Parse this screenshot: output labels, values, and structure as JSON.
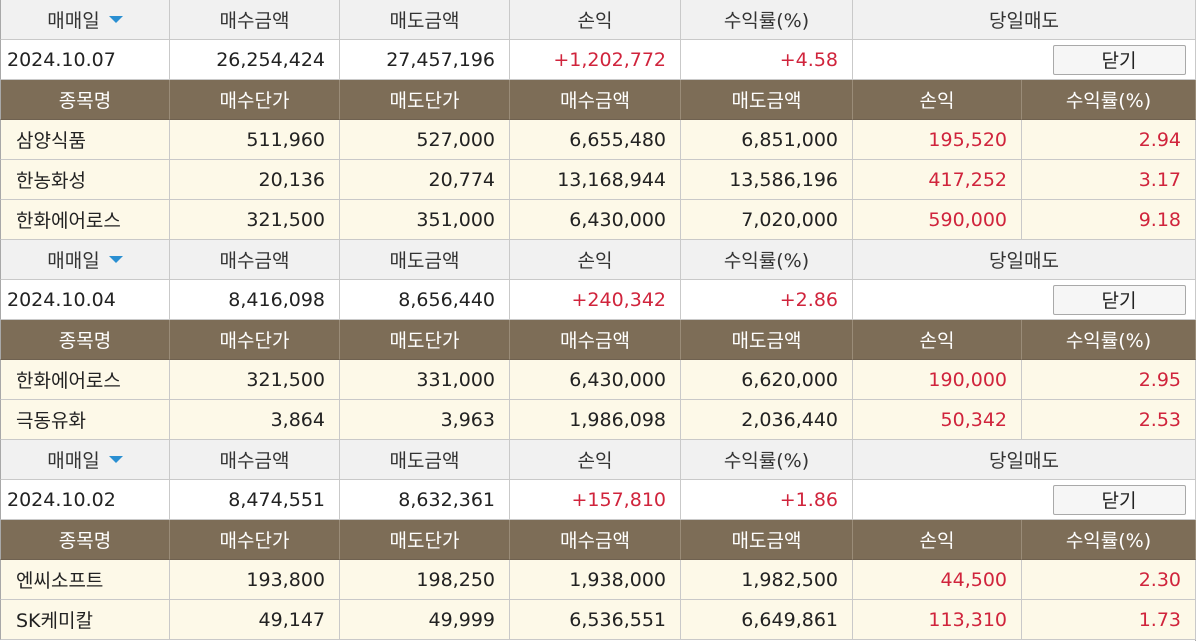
{
  "summary_headers": {
    "trade_date": "매매일",
    "buy_amount": "매수금액",
    "sell_amount": "매도금액",
    "profit": "손익",
    "return_rate": "수익률(%)",
    "same_day_sell": "당일매도"
  },
  "item_headers": {
    "name": "종목명",
    "buy_price": "매수단가",
    "sell_price": "매도단가",
    "buy_amount": "매수금액",
    "sell_amount": "매도금액",
    "profit": "손익",
    "return_rate": "수익률(%)"
  },
  "close_label": "닫기",
  "groups": [
    {
      "date": "2024.10.07",
      "buy_amount": "26,254,424",
      "sell_amount": "27,457,196",
      "profit": "+1,202,772",
      "return_rate": "+4.58",
      "items": [
        {
          "name": "삼양식품",
          "buy_price": "511,960",
          "sell_price": "527,000",
          "buy_amount": "6,655,480",
          "sell_amount": "6,851,000",
          "profit": "195,520",
          "return_rate": "2.94"
        },
        {
          "name": "한농화성",
          "buy_price": "20,136",
          "sell_price": "20,774",
          "buy_amount": "13,168,944",
          "sell_amount": "13,586,196",
          "profit": "417,252",
          "return_rate": "3.17"
        },
        {
          "name": "한화에어로스",
          "buy_price": "321,500",
          "sell_price": "351,000",
          "buy_amount": "6,430,000",
          "sell_amount": "7,020,000",
          "profit": "590,000",
          "return_rate": "9.18"
        }
      ]
    },
    {
      "date": "2024.10.04",
      "buy_amount": "8,416,098",
      "sell_amount": "8,656,440",
      "profit": "+240,342",
      "return_rate": "+2.86",
      "items": [
        {
          "name": "한화에어로스",
          "buy_price": "321,500",
          "sell_price": "331,000",
          "buy_amount": "6,430,000",
          "sell_amount": "6,620,000",
          "profit": "190,000",
          "return_rate": "2.95"
        },
        {
          "name": "극동유화",
          "buy_price": "3,864",
          "sell_price": "3,963",
          "buy_amount": "1,986,098",
          "sell_amount": "2,036,440",
          "profit": "50,342",
          "return_rate": "2.53"
        }
      ]
    },
    {
      "date": "2024.10.02",
      "buy_amount": "8,474,551",
      "sell_amount": "8,632,361",
      "profit": "+157,810",
      "return_rate": "+1.86",
      "items": [
        {
          "name": "엔씨소프트",
          "buy_price": "193,800",
          "sell_price": "198,250",
          "buy_amount": "1,938,000",
          "sell_amount": "1,982,500",
          "profit": "44,500",
          "return_rate": "2.30"
        },
        {
          "name": "SK케미칼",
          "buy_price": "49,147",
          "sell_price": "49,999",
          "buy_amount": "6,536,551",
          "sell_amount": "6,649,861",
          "profit": "113,310",
          "return_rate": "1.73"
        }
      ]
    }
  ]
}
